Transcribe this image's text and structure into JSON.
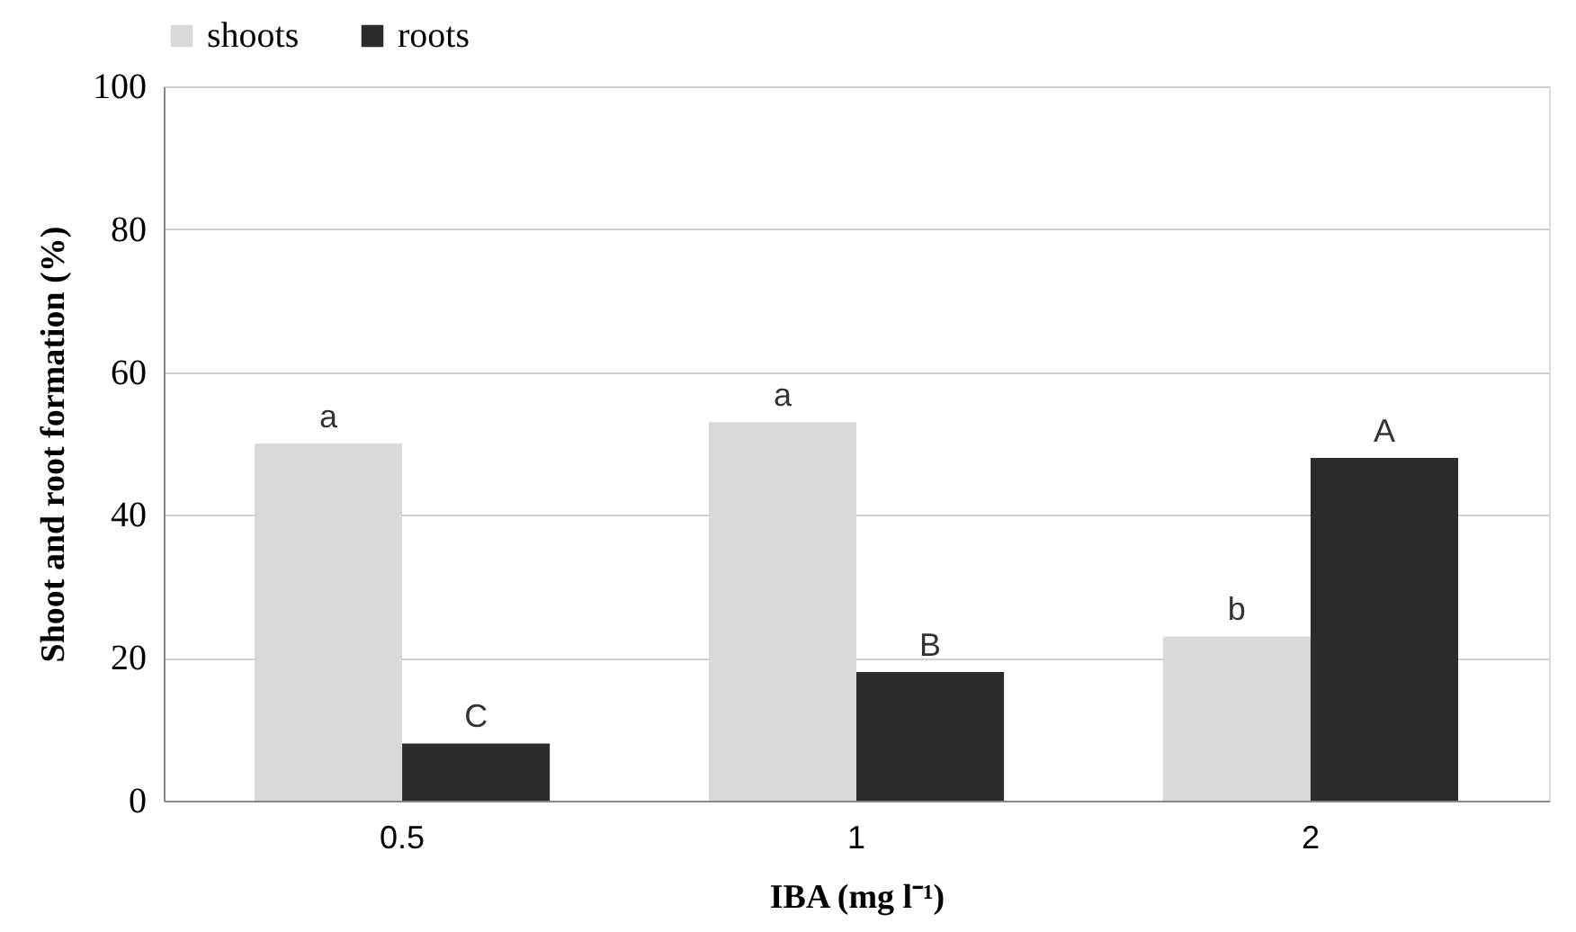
{
  "chart_data": {
    "type": "bar",
    "xlabel": "IBA (mg l⁻¹)",
    "ylabel": "Shoot and root formation (%)",
    "categories": [
      "0.5",
      "1",
      "2"
    ],
    "series": [
      {
        "name": "shoots",
        "color": "#d9d9d9",
        "values": [
          50,
          53,
          23
        ]
      },
      {
        "name": "roots",
        "color": "#2b2b2b",
        "values": [
          8,
          18,
          48
        ]
      }
    ],
    "annotations": [
      {
        "text": "a",
        "x": "0.5",
        "y": 50
      },
      {
        "text": "a",
        "x": "1",
        "y": 53
      },
      {
        "text": "b",
        "x": "2",
        "y": 23
      },
      {
        "text": "C",
        "x": "0.5",
        "y": 8
      },
      {
        "text": "B",
        "x": "1",
        "y": 18
      },
      {
        "text": "A",
        "x": "2",
        "y": 48
      }
    ],
    "ylim": [
      0,
      100
    ],
    "yticks": [
      0,
      20,
      40,
      60,
      80,
      100
    ],
    "grid": "y",
    "legend": "top"
  }
}
